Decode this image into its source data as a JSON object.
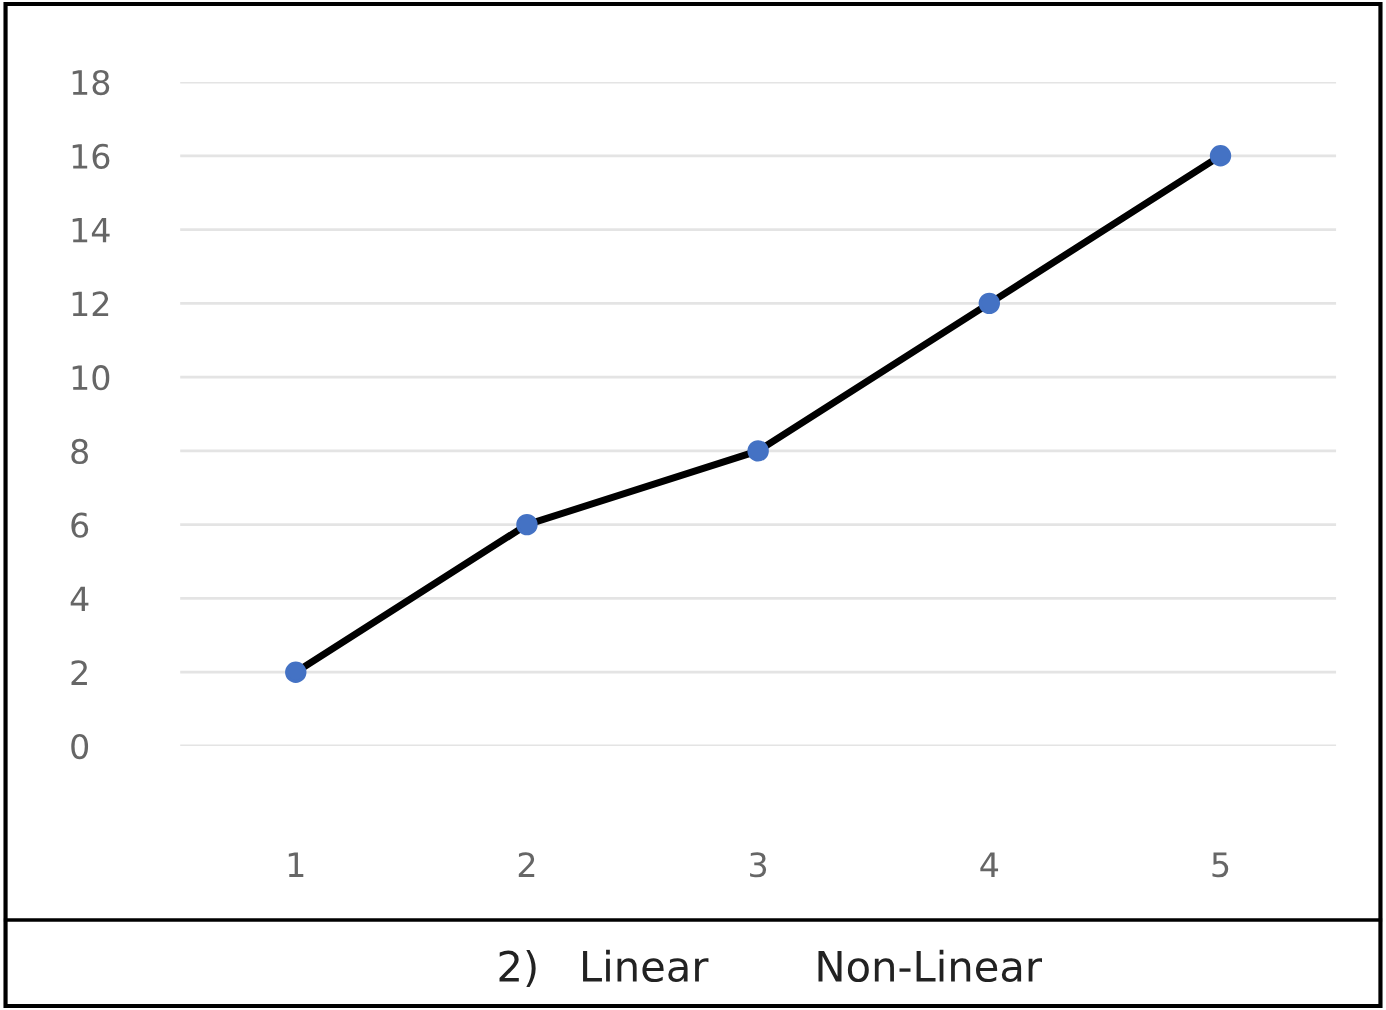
{
  "chart_data": {
    "type": "line",
    "categories": [
      "1",
      "2",
      "3",
      "4",
      "5"
    ],
    "series": [
      {
        "color": "#000000",
        "colors": [
          "#4472c4",
          "#4472c4",
          "#4472c4",
          "#4472c4",
          "#4472c4"
        ],
        "values": [
          2,
          6,
          8,
          12,
          16
        ]
      }
    ],
    "ylim": [
      0,
      18
    ],
    "yticks": [
      0,
      2,
      4,
      6,
      8,
      10,
      12,
      14,
      16,
      18
    ],
    "grid": "y",
    "marker": "circle",
    "line_style": "solid",
    "annotations": [
      "2)   Linear        Non-Linear"
    ]
  }
}
